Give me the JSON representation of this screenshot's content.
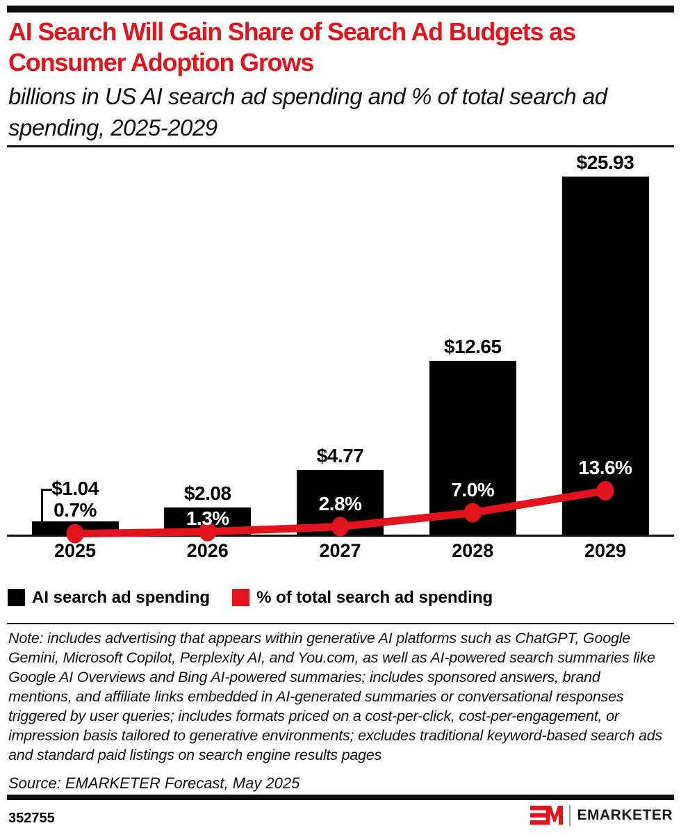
{
  "brand": {
    "red": "#e3131b",
    "black": "#000000"
  },
  "chart_data": {
    "type": "bar",
    "title": "AI Search Will Gain Share of Search Ad Budgets as Consumer Adoption Grows",
    "subtitle": "billions in US AI search ad spending and % of total search ad spending, 2025-2029",
    "categories": [
      "2025",
      "2026",
      "2027",
      "2028",
      "2029"
    ],
    "series": [
      {
        "name": "AI search ad spending",
        "type": "bar",
        "color": "#000000",
        "unit": "billions USD",
        "values": [
          1.04,
          2.08,
          4.77,
          12.65,
          25.93
        ],
        "labels": [
          "$1.04",
          "$2.08",
          "$4.77",
          "$12.65",
          "$25.93"
        ]
      },
      {
        "name": "% of total search ad spending",
        "type": "line",
        "color": "#e3131b",
        "unit": "%",
        "values": [
          0.7,
          1.3,
          2.8,
          7.0,
          13.6
        ],
        "labels": [
          "0.7%",
          "1.3%",
          "2.8%",
          "7.0%",
          "13.6%"
        ]
      }
    ],
    "layout": {
      "value_axis_visible": false,
      "grid": false,
      "baseline": true,
      "bar_axis_range": [
        0,
        26
      ],
      "pct_axis_range": [
        0,
        14
      ],
      "legend_position": "bottom-left",
      "first_bar_label_callout": true,
      "pct_label_inside_bars": [
        false,
        true,
        true,
        true,
        true
      ]
    }
  },
  "legend": {
    "items": [
      {
        "label": "AI search ad spending",
        "color": "#000000"
      },
      {
        "label": "% of total search ad spending",
        "color": "#e3131b"
      }
    ]
  },
  "note": "Note: includes advertising that appears within generative AI platforms such as ChatGPT, Google Gemini, Microsoft Copilot, Perplexity AI, and You.com, as well as AI-powered search summaries like Google AI Overviews and Bing AI-powered summaries; includes sponsored answers, brand mentions, and affiliate links embedded in AI-generated summaries or conversational responses triggered by user queries; includes formats priced on a cost-per-click, cost-per-engagement, or impression basis tailored to generative environments; excludes traditional keyword-based search ads and standard paid listings on search engine results pages",
  "source": "Source: EMARKETER Forecast, May 2025",
  "footer": {
    "chart_id": "352755",
    "brand_name": "EMARKETER"
  }
}
